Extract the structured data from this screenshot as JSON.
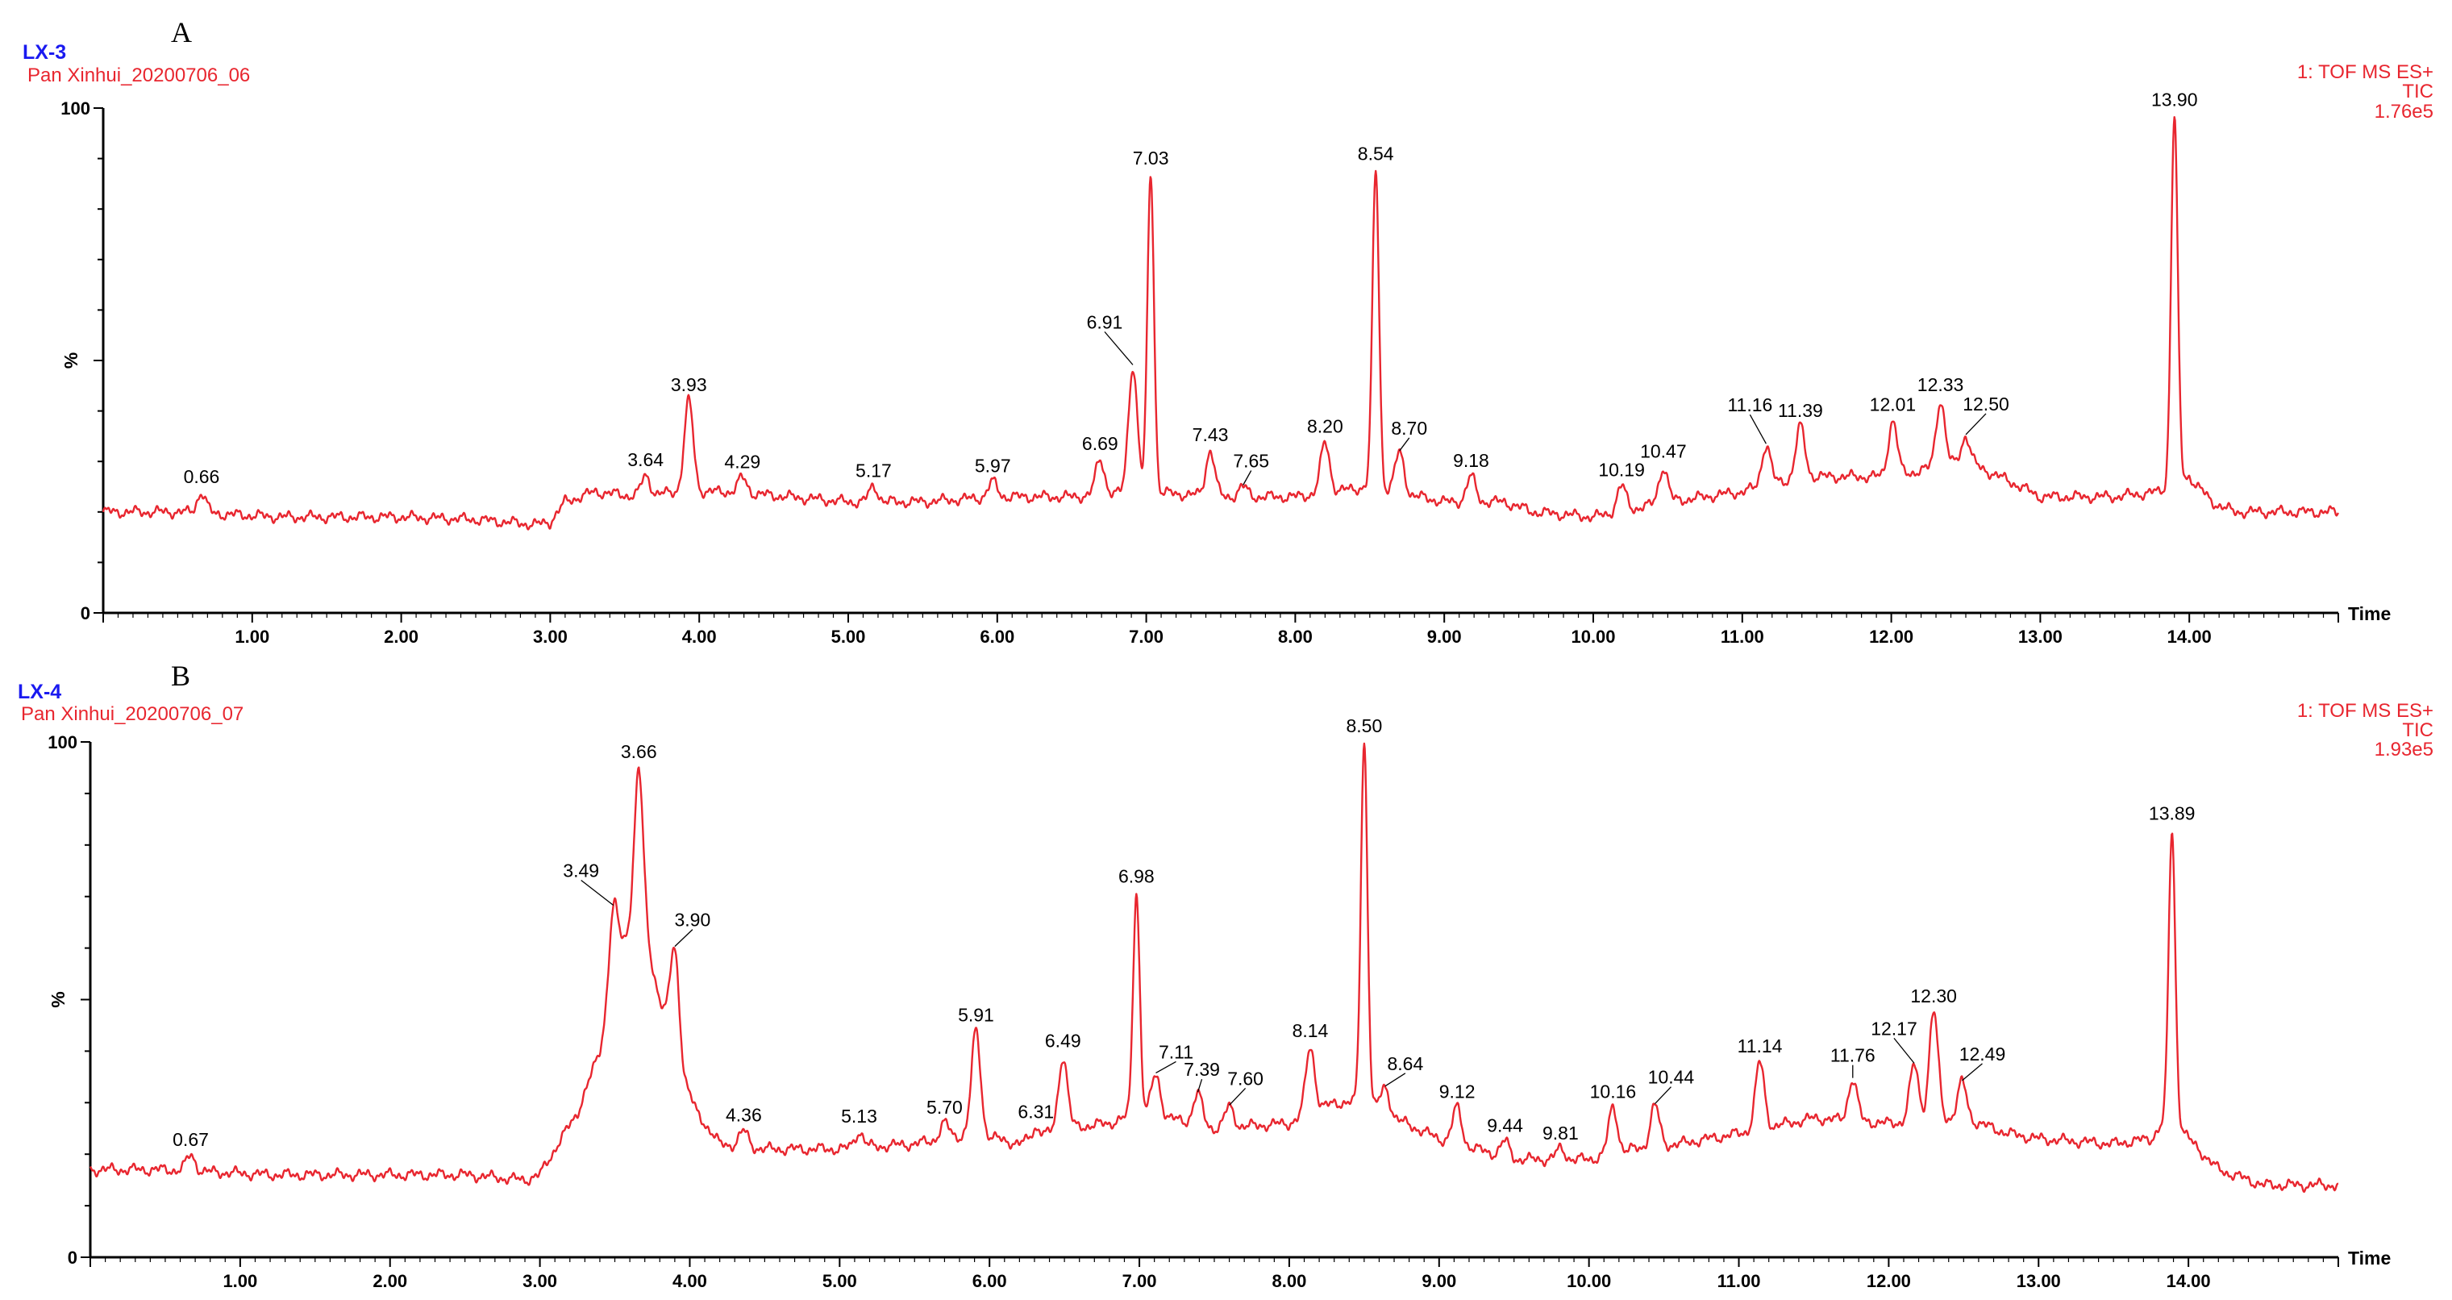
{
  "colors": {
    "trace": "#e8262f",
    "sample": "#1a1af0",
    "axis": "#000000"
  },
  "chart_data": [
    {
      "type": "line",
      "panel": "A",
      "sample": "LX-3",
      "file": "Pan Xinhui_20200706_06",
      "detector": [
        "1: TOF MS ES+",
        "TIC",
        "1.76e5"
      ],
      "xlabel": "Time",
      "ylabel": "%",
      "xlim": [
        0,
        15
      ],
      "ylim": [
        0,
        100
      ],
      "xticks": [
        "1.00",
        "2.00",
        "3.00",
        "4.00",
        "5.00",
        "6.00",
        "7.00",
        "8.00",
        "9.00",
        "10.00",
        "11.00",
        "12.00",
        "13.00",
        "14.00"
      ],
      "yticks": [
        "0",
        "100"
      ],
      "baseline": [
        [
          0,
          20
        ],
        [
          0.5,
          20
        ],
        [
          1.2,
          19
        ],
        [
          2.0,
          19
        ],
        [
          2.5,
          18.5
        ],
        [
          2.9,
          17.5
        ],
        [
          3.0,
          18
        ],
        [
          3.1,
          22
        ],
        [
          3.3,
          24
        ],
        [
          3.6,
          23
        ],
        [
          3.85,
          24
        ],
        [
          4.2,
          24
        ],
        [
          5.0,
          22
        ],
        [
          5.5,
          22
        ],
        [
          6.0,
          23
        ],
        [
          6.5,
          23
        ],
        [
          7.0,
          24
        ],
        [
          7.5,
          23
        ],
        [
          8.0,
          23
        ],
        [
          8.5,
          25
        ],
        [
          9.0,
          22
        ],
        [
          9.4,
          22
        ],
        [
          9.6,
          20
        ],
        [
          10.0,
          19
        ],
        [
          10.5,
          22
        ],
        [
          11.0,
          24
        ],
        [
          11.4,
          27
        ],
        [
          12.0,
          27
        ],
        [
          12.5,
          30
        ],
        [
          12.8,
          26
        ],
        [
          13.0,
          23
        ],
        [
          13.5,
          23
        ],
        [
          13.8,
          24
        ],
        [
          14.0,
          27
        ],
        [
          14.15,
          22
        ],
        [
          14.3,
          20
        ],
        [
          14.6,
          20
        ],
        [
          15.0,
          20
        ]
      ],
      "peaks": [
        {
          "rt": 0.66,
          "height": 4,
          "label": "0.66"
        },
        {
          "rt": 3.64,
          "height": 4,
          "label": "3.64"
        },
        {
          "rt": 3.93,
          "height": 18,
          "label": "3.93"
        },
        {
          "rt": 4.29,
          "height": 3,
          "label": "4.29"
        },
        {
          "rt": 5.17,
          "height": 3,
          "label": "5.17"
        },
        {
          "rt": 5.97,
          "height": 3,
          "label": "5.97"
        },
        {
          "rt": 6.69,
          "height": 7,
          "label": "6.69"
        },
        {
          "rt": 6.91,
          "height": 25,
          "label": "6.91"
        },
        {
          "rt": 7.03,
          "height": 63,
          "label": "7.03"
        },
        {
          "rt": 7.43,
          "height": 9,
          "label": "7.43"
        },
        {
          "rt": 7.65,
          "height": 2,
          "label": "7.65"
        },
        {
          "rt": 8.2,
          "height": 10,
          "label": "8.20"
        },
        {
          "rt": 8.54,
          "height": 63,
          "label": "8.54"
        },
        {
          "rt": 8.7,
          "height": 8,
          "label": "8.70"
        },
        {
          "rt": 9.18,
          "height": 5,
          "label": "9.18"
        },
        {
          "rt": 10.19,
          "height": 5,
          "label": "10.19"
        },
        {
          "rt": 10.47,
          "height": 7,
          "label": "10.47"
        },
        {
          "rt": 11.16,
          "height": 8,
          "label": "11.16"
        },
        {
          "rt": 11.39,
          "height": 10,
          "label": "11.39"
        },
        {
          "rt": 12.01,
          "height": 11,
          "label": "12.01"
        },
        {
          "rt": 12.33,
          "height": 13,
          "label": "12.33"
        },
        {
          "rt": 12.5,
          "height": 5,
          "label": "12.50"
        },
        {
          "rt": 13.9,
          "height": 73,
          "label": "13.90"
        }
      ]
    },
    {
      "type": "line",
      "panel": "B",
      "sample": "LX-4",
      "file": "Pan Xinhui_20200706_07",
      "detector": [
        "1: TOF MS ES+",
        "TIC",
        "1.93e5"
      ],
      "xlabel": "Time",
      "ylabel": "%",
      "xlim": [
        0,
        15
      ],
      "ylim": [
        0,
        100
      ],
      "xticks": [
        "1.00",
        "2.00",
        "3.00",
        "4.00",
        "5.00",
        "6.00",
        "7.00",
        "8.00",
        "9.00",
        "10.00",
        "11.00",
        "12.00",
        "13.00",
        "14.00"
      ],
      "yticks": [
        "0",
        "100"
      ],
      "baseline": [
        [
          0,
          17
        ],
        [
          0.5,
          17
        ],
        [
          1.2,
          16
        ],
        [
          2.0,
          16
        ],
        [
          2.5,
          16
        ],
        [
          2.9,
          15
        ],
        [
          3.0,
          16
        ],
        [
          3.1,
          21
        ],
        [
          3.25,
          28
        ],
        [
          3.4,
          40
        ],
        [
          3.55,
          60
        ],
        [
          3.66,
          68
        ],
        [
          3.8,
          50
        ],
        [
          3.95,
          35
        ],
        [
          4.05,
          28
        ],
        [
          4.2,
          22
        ],
        [
          4.5,
          21
        ],
        [
          5.0,
          21
        ],
        [
          5.5,
          22
        ],
        [
          5.9,
          24
        ],
        [
          6.2,
          22
        ],
        [
          6.5,
          25
        ],
        [
          6.8,
          26
        ],
        [
          7.0,
          28
        ],
        [
          7.2,
          27
        ],
        [
          7.5,
          25
        ],
        [
          8.0,
          26
        ],
        [
          8.3,
          30
        ],
        [
          8.5,
          30
        ],
        [
          8.7,
          27
        ],
        [
          9.0,
          23
        ],
        [
          9.5,
          19
        ],
        [
          10.0,
          19
        ],
        [
          10.3,
          21
        ],
        [
          10.6,
          22
        ],
        [
          11.0,
          24
        ],
        [
          11.5,
          27
        ],
        [
          12.0,
          26
        ],
        [
          12.5,
          27
        ],
        [
          12.8,
          24
        ],
        [
          13.0,
          23
        ],
        [
          13.5,
          22
        ],
        [
          13.75,
          23
        ],
        [
          13.89,
          28
        ],
        [
          14.0,
          23
        ],
        [
          14.2,
          17
        ],
        [
          14.5,
          14
        ],
        [
          15.0,
          14
        ]
      ],
      "peaks": [
        {
          "rt": 0.67,
          "height": 3,
          "label": "0.67"
        },
        {
          "rt": 3.49,
          "height": 16,
          "label": "3.49"
        },
        {
          "rt": 3.66,
          "height": 27,
          "label": "3.66"
        },
        {
          "rt": 3.9,
          "height": 20,
          "label": "3.90"
        },
        {
          "rt": 4.36,
          "height": 3,
          "label": "4.36"
        },
        {
          "rt": 5.13,
          "height": 3,
          "label": "5.13"
        },
        {
          "rt": 5.7,
          "height": 3,
          "label": "5.70"
        },
        {
          "rt": 5.91,
          "height": 20,
          "label": "5.91"
        },
        {
          "rt": 6.31,
          "height": 2,
          "label": "6.31"
        },
        {
          "rt": 6.49,
          "height": 14,
          "label": "6.49"
        },
        {
          "rt": 6.98,
          "height": 43,
          "label": "6.98"
        },
        {
          "rt": 7.11,
          "height": 8,
          "label": "7.11"
        },
        {
          "rt": 7.39,
          "height": 6,
          "label": "7.39"
        },
        {
          "rt": 7.6,
          "height": 4,
          "label": "7.60"
        },
        {
          "rt": 8.14,
          "height": 13,
          "label": "8.14"
        },
        {
          "rt": 8.5,
          "height": 70,
          "label": "8.50"
        },
        {
          "rt": 8.64,
          "height": 5,
          "label": "8.64"
        },
        {
          "rt": 9.12,
          "height": 7,
          "label": "9.12"
        },
        {
          "rt": 9.44,
          "height": 3,
          "label": "9.44"
        },
        {
          "rt": 9.81,
          "height": 2,
          "label": "9.81"
        },
        {
          "rt": 10.16,
          "height": 9,
          "label": "10.16"
        },
        {
          "rt": 10.44,
          "height": 8,
          "label": "10.44"
        },
        {
          "rt": 11.14,
          "height": 13,
          "label": "11.14"
        },
        {
          "rt": 11.76,
          "height": 8,
          "label": "11.76"
        },
        {
          "rt": 12.17,
          "height": 11,
          "label": "12.17"
        },
        {
          "rt": 12.3,
          "height": 21,
          "label": "12.30"
        },
        {
          "rt": 12.49,
          "height": 7,
          "label": "12.49"
        },
        {
          "rt": 13.89,
          "height": 55,
          "label": "13.89"
        }
      ]
    }
  ]
}
